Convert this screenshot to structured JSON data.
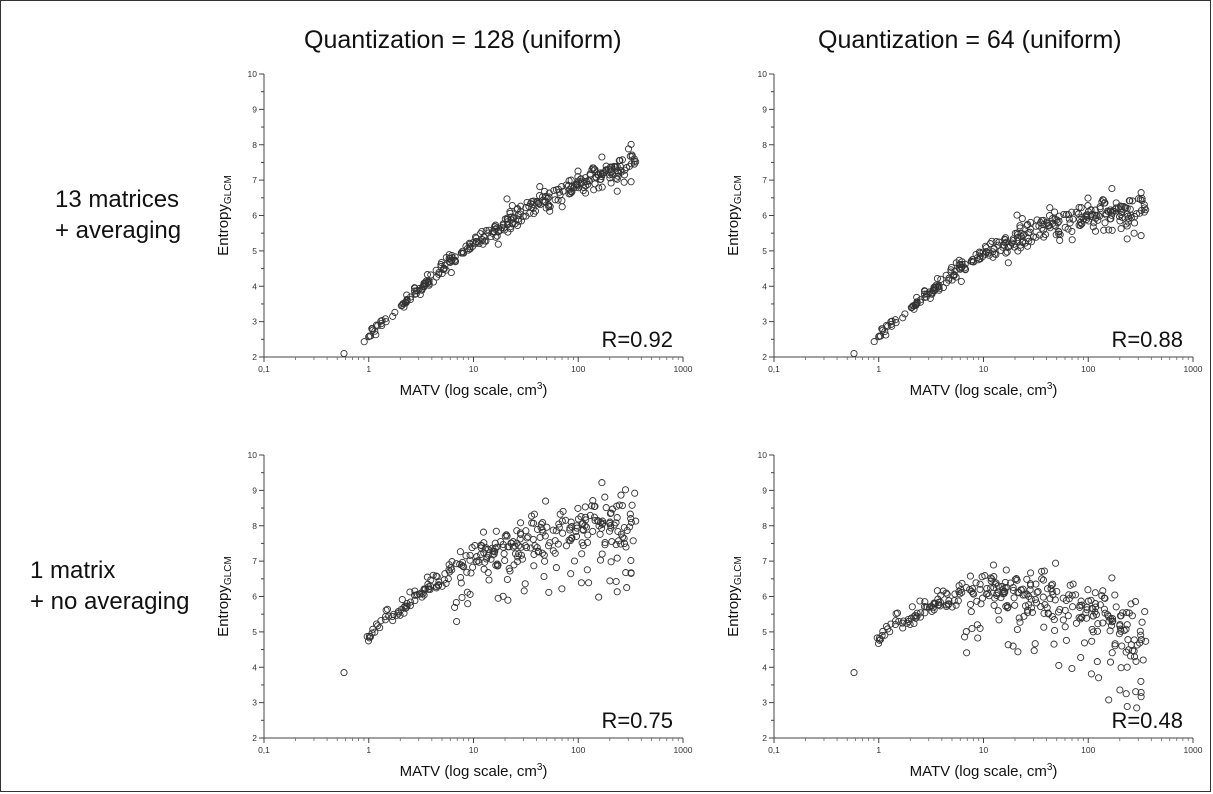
{
  "column_titles": [
    "Quantization = 128 (uniform)",
    "Quantization = 64 (uniform)"
  ],
  "row_labels": [
    [
      "13 matrices",
      "+ averaging"
    ],
    [
      "1 matrix",
      "+ no averaging"
    ]
  ],
  "chart_data": [
    {
      "type": "scatter",
      "title": "",
      "xlabel": "MATV (log scale, cm³)",
      "ylabel": "Entropy_GLCM",
      "xscale": "log",
      "xlim": [
        0.1,
        1000
      ],
      "ylim": [
        2,
        10
      ],
      "xticks": [
        "0,1",
        "1",
        "10",
        "100",
        "1000"
      ],
      "yticks": [
        "2",
        "3",
        "4",
        "5",
        "6",
        "7",
        "8",
        "9",
        "10"
      ],
      "annotation": "R=0.92",
      "model": {
        "a": 2.6,
        "b": 2.98,
        "c": 0.42,
        "ymax": 10
      }
    },
    {
      "type": "scatter",
      "title": "",
      "xlabel": "MATV (log scale, cm³)",
      "ylabel": "Entropy_GLCM",
      "xscale": "log",
      "xlim": [
        0.1,
        1000
      ],
      "ylim": [
        2,
        10
      ],
      "xticks": [
        "0,1",
        "1",
        "10",
        "100",
        "1000"
      ],
      "yticks": [
        "2",
        "3",
        "4",
        "5",
        "6",
        "7",
        "8",
        "9",
        "10"
      ],
      "annotation": "R=0.88",
      "model": {
        "a": 2.6,
        "b": 2.85,
        "c": 0.58,
        "ymax": 7.2
      }
    },
    {
      "type": "scatter",
      "title": "",
      "xlabel": "MATV (log scale, cm³)",
      "ylabel": "Entropy_GLCM",
      "xscale": "log",
      "xlim": [
        0.1,
        1000
      ],
      "ylim": [
        2,
        10
      ],
      "xticks": [
        "0,1",
        "1",
        "10",
        "100",
        "1000"
      ],
      "yticks": [
        "2",
        "3",
        "4",
        "5",
        "6",
        "7",
        "8",
        "9",
        "10"
      ],
      "annotation": "R=0.75",
      "model": {
        "a": 4.9,
        "b": 2.7,
        "c": 0.58,
        "ymax": 9.0
      }
    },
    {
      "type": "scatter",
      "title": "",
      "xlabel": "MATV (log scale, cm³)",
      "ylabel": "Entropy_GLCM",
      "xscale": "log",
      "xlim": [
        0.1,
        1000
      ],
      "ylim": [
        2,
        10
      ],
      "xticks": [
        "0,1",
        "1",
        "10",
        "100",
        "1000"
      ],
      "yticks": [
        "2",
        "3",
        "4",
        "5",
        "6",
        "7",
        "8",
        "9",
        "10"
      ],
      "annotation": "R=0.48",
      "model": {
        "a": 4.85,
        "b": 2.2,
        "c": 0.9,
        "ymax": 7.75
      }
    }
  ]
}
